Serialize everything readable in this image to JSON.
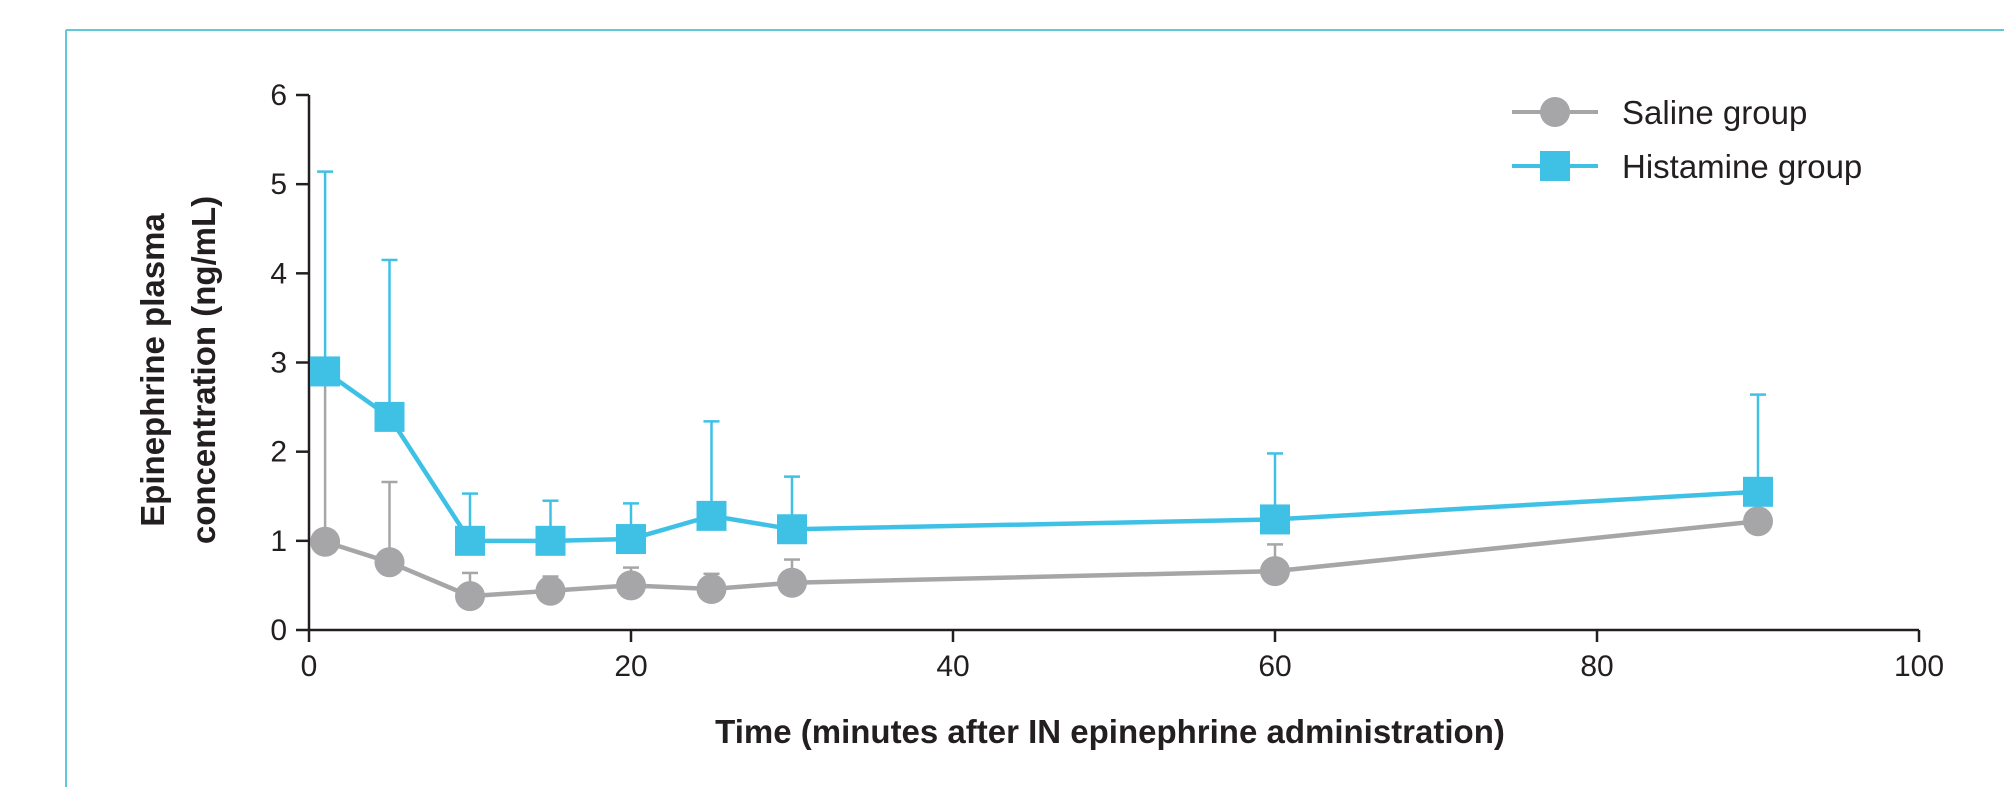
{
  "chart_data": {
    "type": "line",
    "xlabel": "Time (minutes after IN epinephrine administration)",
    "ylabel_line1": "Epinephrine plasma",
    "ylabel_line2": "concentration (ng/mL)",
    "xlim": [
      0,
      100
    ],
    "ylim": [
      0,
      6
    ],
    "x_ticks": [
      0,
      20,
      40,
      60,
      80,
      100
    ],
    "y_ticks": [
      0,
      1,
      2,
      3,
      4,
      5,
      6
    ],
    "grid": false,
    "legend_position": "top-right",
    "series": [
      {
        "name": "Saline group",
        "color": "#a6a6a8",
        "marker": "circle",
        "x": [
          1,
          5,
          10,
          15,
          20,
          25,
          30,
          60,
          90
        ],
        "y": [
          0.99,
          0.76,
          0.38,
          0.44,
          0.5,
          0.46,
          0.53,
          0.66,
          1.22
        ],
        "error_upper": [
          2.9,
          1.66,
          0.64,
          0.6,
          0.7,
          0.63,
          0.79,
          0.96,
          1.24
        ]
      },
      {
        "name": "Histamine group",
        "color": "#3fc1e6",
        "marker": "square",
        "x": [
          1,
          5,
          10,
          15,
          20,
          25,
          30,
          60,
          90
        ],
        "y": [
          2.9,
          2.39,
          1.0,
          1.0,
          1.02,
          1.28,
          1.13,
          1.24,
          1.55
        ],
        "error_upper": [
          5.14,
          4.15,
          1.53,
          1.45,
          1.42,
          2.34,
          1.72,
          1.98,
          2.64
        ]
      }
    ]
  }
}
